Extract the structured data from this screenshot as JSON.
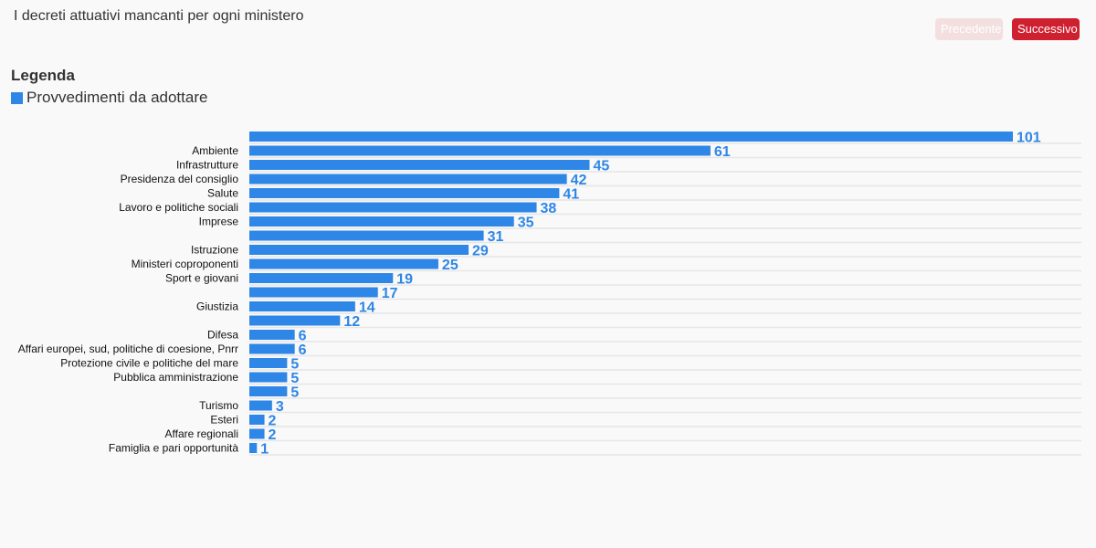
{
  "header": {
    "title": "I decreti attuativi mancanti per ogni ministero",
    "prev_label": "Precedente",
    "next_label": "Successivo"
  },
  "legend": {
    "title": "Legenda",
    "items": [
      {
        "label": "Provvedimenti da adottare",
        "color": "#2e86e6"
      }
    ]
  },
  "colors": {
    "bar": "#2e86e6",
    "grid": "#e6e6e6",
    "prev_button": "#f3dfe0",
    "next_button": "#cf2030"
  },
  "chart_data": {
    "type": "bar",
    "orientation": "horizontal",
    "grid": true,
    "legend_position": "top-left",
    "categories": [
      "",
      "Ambiente",
      "Infrastrutture",
      "Presidenza del consiglio",
      "Salute",
      "Lavoro e politiche sociali",
      "Imprese",
      "",
      "Istruzione",
      "Ministeri coproponenti",
      "Sport e giovani",
      "",
      "Giustizia",
      "",
      "Difesa",
      "Affari europei, sud, politiche di coesione, Pnrr",
      "Protezione civile e politiche del mare",
      "Pubblica amministrazione",
      "",
      "Turismo",
      "Esteri",
      "Affare regionali",
      "Famiglia e pari opportunità"
    ],
    "series": [
      {
        "name": "Provvedimenti da adottare",
        "values": [
          101,
          61,
          45,
          42,
          41,
          38,
          35,
          31,
          29,
          25,
          19,
          17,
          14,
          12,
          6,
          6,
          5,
          5,
          5,
          3,
          2,
          2,
          1
        ]
      }
    ],
    "xlim": [
      0,
      101
    ]
  }
}
